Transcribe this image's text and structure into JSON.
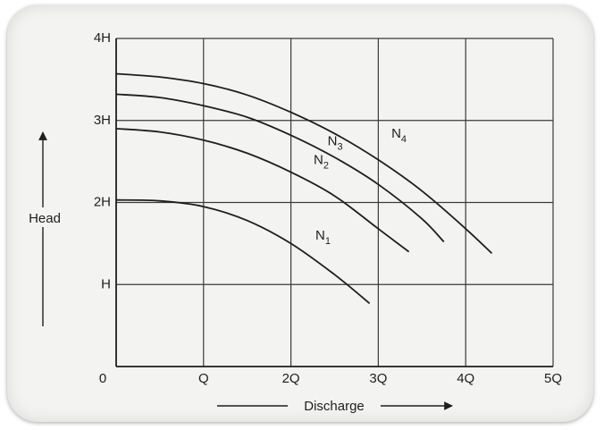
{
  "chart_data": {
    "type": "line",
    "title": "",
    "xlabel": "Discharge",
    "ylabel": "Head",
    "xlim": [
      0,
      5
    ],
    "ylim": [
      0,
      4
    ],
    "grid": true,
    "x_tick_labels": [
      "0",
      "Q",
      "2Q",
      "3Q",
      "4Q",
      "5Q"
    ],
    "y_tick_labels": [
      "H",
      "2H",
      "3H",
      "4H"
    ],
    "series": [
      {
        "name": "N1",
        "label_main": "N",
        "label_sub": "1",
        "x": [
          0.0,
          0.5,
          1.0,
          1.5,
          2.0,
          2.5,
          2.9
        ],
        "y": [
          2.03,
          2.02,
          1.95,
          1.78,
          1.5,
          1.12,
          0.77
        ]
      },
      {
        "name": "N2",
        "label_main": "N",
        "label_sub": "2",
        "x": [
          0.0,
          0.5,
          1.0,
          1.5,
          2.0,
          2.5,
          3.0,
          3.35
        ],
        "y": [
          2.9,
          2.86,
          2.76,
          2.6,
          2.37,
          2.08,
          1.68,
          1.4
        ]
      },
      {
        "name": "N3",
        "label_main": "N",
        "label_sub": "3",
        "x": [
          0.0,
          0.5,
          1.0,
          1.5,
          2.0,
          2.5,
          3.0,
          3.5,
          3.75
        ],
        "y": [
          3.32,
          3.28,
          3.18,
          3.04,
          2.82,
          2.55,
          2.22,
          1.8,
          1.52
        ]
      },
      {
        "name": "N4",
        "label_main": "N",
        "label_sub": "4",
        "x": [
          0.0,
          0.5,
          1.0,
          1.5,
          2.0,
          2.5,
          3.0,
          3.5,
          4.0,
          4.3
        ],
        "y": [
          3.57,
          3.53,
          3.45,
          3.31,
          3.1,
          2.84,
          2.52,
          2.14,
          1.68,
          1.38
        ]
      }
    ]
  }
}
